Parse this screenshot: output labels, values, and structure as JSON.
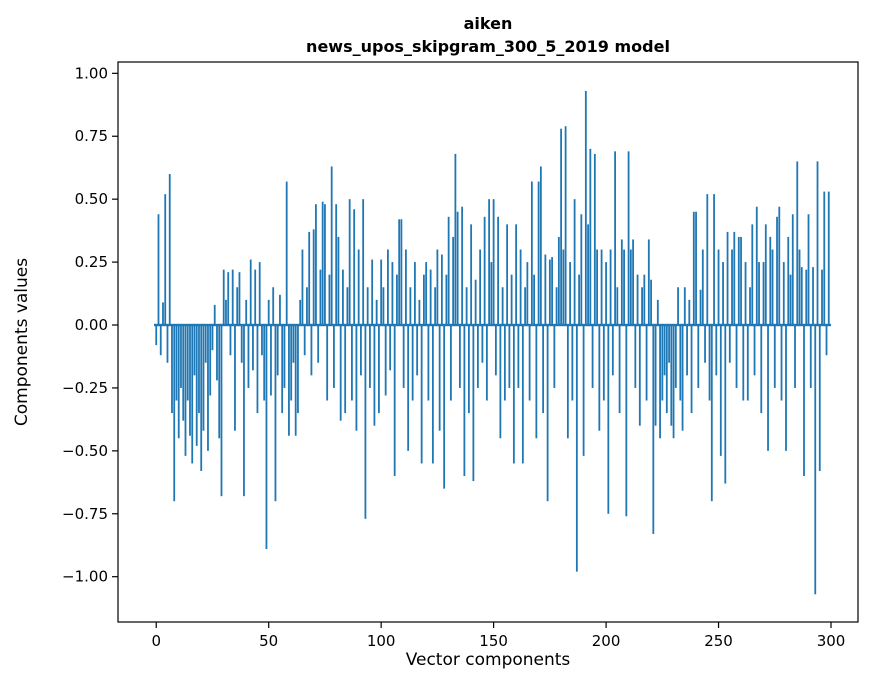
{
  "figure": {
    "title_line1": "aiken",
    "title_line2": "news_upos_skipgram_300_5_2019 model",
    "xlabel": "Vector components",
    "ylabel": "Components values"
  },
  "chart_data": {
    "type": "bar",
    "title": "aiken\nnews_upos_skipgram_300_5_2019 model",
    "xlabel": "Vector components",
    "ylabel": "Components values",
    "bar_color": "#1f77b4",
    "axis_color": "#000000",
    "background": "#ffffff",
    "grid": false,
    "legend": "none",
    "xlim": [
      -17,
      312
    ],
    "ylim": [
      -1.18,
      1.045
    ],
    "xticks": [
      0,
      50,
      100,
      150,
      200,
      250,
      300
    ],
    "xtick_labels": [
      "0",
      "50",
      "100",
      "150",
      "200",
      "250",
      "300"
    ],
    "yticks": [
      1.0,
      0.75,
      0.5,
      0.25,
      0.0,
      -0.25,
      -0.5,
      -0.75,
      -1.0
    ],
    "ytick_labels": [
      "1.00",
      "0.75",
      "0.50",
      "0.25",
      "0.00",
      "−0.25",
      "−0.50",
      "−0.75",
      "−1.00"
    ],
    "values": [
      -0.08,
      0.44,
      -0.12,
      0.09,
      0.52,
      -0.15,
      0.6,
      -0.35,
      -0.7,
      -0.3,
      -0.45,
      -0.25,
      -0.38,
      -0.52,
      -0.3,
      -0.44,
      -0.55,
      -0.2,
      -0.48,
      -0.35,
      -0.58,
      -0.42,
      -0.15,
      -0.5,
      -0.28,
      -0.1,
      0.08,
      -0.22,
      -0.45,
      -0.68,
      0.22,
      0.1,
      0.21,
      -0.12,
      0.22,
      -0.42,
      0.15,
      0.21,
      -0.15,
      -0.68,
      0.1,
      -0.25,
      0.26,
      -0.18,
      0.22,
      -0.35,
      0.25,
      -0.12,
      -0.3,
      -0.89,
      0.1,
      -0.28,
      0.15,
      -0.7,
      -0.2,
      0.12,
      -0.35,
      -0.25,
      0.57,
      -0.44,
      -0.3,
      -0.15,
      -0.44,
      -0.35,
      0.1,
      0.3,
      -0.12,
      0.15,
      0.37,
      -0.2,
      0.38,
      0.48,
      -0.15,
      0.22,
      0.49,
      0.48,
      -0.3,
      0.2,
      0.63,
      -0.25,
      0.48,
      0.35,
      -0.38,
      0.22,
      -0.35,
      0.15,
      0.5,
      -0.3,
      0.46,
      -0.42,
      0.3,
      -0.2,
      0.5,
      -0.77,
      0.15,
      -0.25,
      0.26,
      -0.4,
      0.1,
      -0.35,
      0.26,
      0.15,
      -0.28,
      0.3,
      -0.18,
      0.25,
      -0.6,
      0.2,
      0.42,
      0.42,
      -0.25,
      0.3,
      -0.5,
      0.15,
      -0.3,
      0.25,
      -0.2,
      0.1,
      -0.55,
      0.2,
      0.25,
      -0.3,
      0.22,
      -0.55,
      0.15,
      0.3,
      -0.42,
      0.28,
      -0.65,
      0.2,
      0.43,
      -0.3,
      0.35,
      0.68,
      0.45,
      -0.25,
      0.47,
      -0.6,
      0.15,
      -0.35,
      0.4,
      -0.62,
      0.18,
      -0.25,
      0.3,
      -0.15,
      0.43,
      -0.3,
      0.5,
      0.25,
      0.5,
      -0.2,
      0.43,
      -0.45,
      0.15,
      -0.3,
      0.4,
      -0.25,
      0.2,
      -0.55,
      0.4,
      -0.25,
      0.3,
      -0.55,
      0.15,
      0.25,
      -0.3,
      0.57,
      0.2,
      -0.45,
      0.57,
      0.63,
      -0.35,
      0.28,
      -0.7,
      0.26,
      0.27,
      -0.25,
      0.15,
      0.35,
      0.78,
      0.3,
      0.79,
      -0.45,
      0.25,
      -0.3,
      0.5,
      -0.98,
      0.2,
      0.44,
      -0.52,
      0.93,
      0.4,
      0.7,
      -0.25,
      0.68,
      0.3,
      -0.42,
      0.3,
      -0.3,
      0.25,
      -0.75,
      0.3,
      -0.2,
      0.69,
      0.15,
      -0.35,
      0.34,
      0.3,
      -0.76,
      0.69,
      0.3,
      0.34,
      -0.25,
      0.2,
      -0.4,
      0.15,
      0.2,
      -0.3,
      0.34,
      0.18,
      -0.83,
      -0.4,
      0.1,
      -0.45,
      -0.3,
      -0.2,
      -0.35,
      -0.15,
      -0.4,
      -0.45,
      -0.25,
      0.15,
      -0.3,
      -0.42,
      0.15,
      -0.2,
      0.1,
      -0.35,
      0.45,
      0.45,
      -0.25,
      0.14,
      0.3,
      -0.15,
      0.52,
      -0.3,
      -0.7,
      0.52,
      -0.2,
      0.3,
      -0.52,
      0.25,
      -0.63,
      0.37,
      -0.15,
      0.3,
      0.37,
      -0.25,
      0.35,
      0.35,
      -0.3,
      0.25,
      -0.3,
      0.15,
      0.4,
      -0.2,
      0.47,
      0.25,
      -0.35,
      0.25,
      0.4,
      -0.5,
      0.35,
      0.3,
      -0.25,
      0.43,
      0.47,
      -0.3,
      0.25,
      -0.5,
      0.35,
      0.2,
      0.44,
      -0.25,
      0.65,
      0.3,
      0.23,
      -0.6,
      0.22,
      0.44,
      -0.25,
      0.23,
      -1.07,
      0.65,
      -0.58,
      0.22,
      0.53,
      -0.12,
      0.53
    ]
  }
}
